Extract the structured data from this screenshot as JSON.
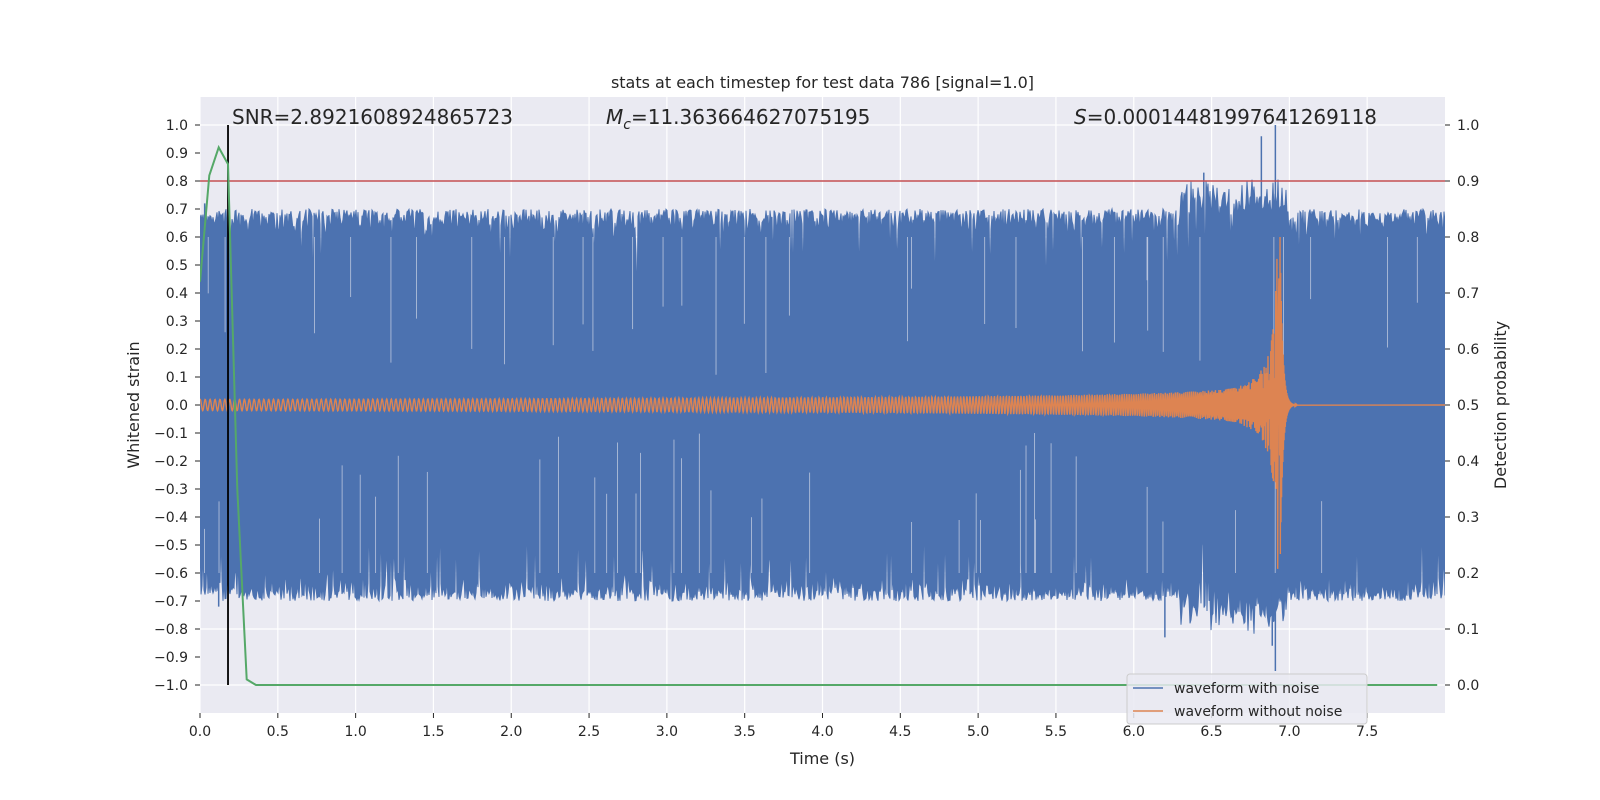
{
  "chart_data": {
    "type": "line",
    "title": "stats at each timestep for test data 786 [signal=1.0]",
    "xlabel": "Time (s)",
    "ylabel": "Whitened strain",
    "ylabel_right": "Detection probability",
    "xlim": [
      0.0,
      8.0
    ],
    "ylim": [
      -1.1,
      1.1
    ],
    "ylim_right": [
      -0.05,
      1.05
    ],
    "x_ticks": [
      0.0,
      0.5,
      1.0,
      1.5,
      2.0,
      2.5,
      3.0,
      3.5,
      4.0,
      4.5,
      5.0,
      5.5,
      6.0,
      6.5,
      7.0,
      7.5
    ],
    "x_tick_labels": [
      "0.0",
      "0.5",
      "1.0",
      "1.5",
      "2.0",
      "2.5",
      "3.0",
      "3.5",
      "4.0",
      "4.5",
      "5.0",
      "5.5",
      "6.0",
      "6.5",
      "7.0",
      "7.5"
    ],
    "y_ticks": [
      1.0,
      0.9,
      0.8,
      0.7,
      0.6,
      0.5,
      0.4,
      0.3,
      0.2,
      0.1,
      0.0,
      -0.1,
      -0.2,
      -0.3,
      -0.4,
      -0.5,
      -0.6,
      -0.7,
      -0.8,
      -0.9,
      -1.0
    ],
    "y_tick_labels": [
      "1.0",
      "0.9",
      "0.8",
      "0.7",
      "0.6",
      "0.5",
      "0.4",
      "0.3",
      "0.2",
      "0.1",
      "0.0",
      "−0.1",
      "−0.2",
      "−0.3",
      "−0.4",
      "−0.5",
      "−0.6",
      "−0.7",
      "−0.8",
      "−0.9",
      "−1.0"
    ],
    "y_ticks_right": [
      1.0,
      0.9,
      0.8,
      0.7,
      0.6,
      0.5,
      0.4,
      0.3,
      0.2,
      0.1,
      0.0
    ],
    "y_tick_labels_right": [
      "1.0",
      "0.9",
      "0.8",
      "0.7",
      "0.6",
      "0.5",
      "0.4",
      "0.3",
      "0.2",
      "0.1",
      "0.0"
    ],
    "annotations": {
      "snr": "SNR=2.8921608924865723",
      "mc_symbol": "M",
      "mc_subscript": "c",
      "mc_value": "=11.363664627075195",
      "s_symbol": "S",
      "s_value": "=0.00014481997641269118"
    },
    "threshold_line": {
      "axis": "right",
      "y": 0.9,
      "color": "#c44e52"
    },
    "detection_time_line": {
      "x": 0.18,
      "y_from": -1.0,
      "y_to": 1.0,
      "color": "#000000"
    },
    "merger_time": 6.94,
    "series": [
      {
        "name": "waveform with noise",
        "color": "#4c72b0",
        "axis": "left",
        "typical_envelope": [
          -0.7,
          0.7
        ],
        "extreme_excursions": [
          {
            "x": 0.03,
            "y": 0.72
          },
          {
            "x": 0.12,
            "y": -0.72
          },
          {
            "x": 1.76,
            "y": -0.3
          },
          {
            "x": 3.7,
            "y": -0.3
          },
          {
            "x": 6.2,
            "y": -0.83
          },
          {
            "x": 6.45,
            "y": 0.83
          },
          {
            "x": 6.82,
            "y": 0.96
          },
          {
            "x": 6.91,
            "y": 1.0
          },
          {
            "x": 6.91,
            "y": -0.95
          },
          {
            "x": 6.89,
            "y": -0.86
          }
        ]
      },
      {
        "name": "waveform without noise",
        "color": "#dd8452",
        "axis": "left",
        "amplitude_start": 0.02,
        "amplitude_peak": 0.6,
        "peak_time": 6.94
      },
      {
        "name": "detection probability",
        "color": "#55a868",
        "axis": "right",
        "x": [
          0.0,
          0.06,
          0.12,
          0.18,
          0.24,
          0.3,
          0.36,
          0.42,
          1.0,
          2.0,
          3.0,
          4.0,
          5.0,
          6.0,
          7.0,
          7.95
        ],
        "y": [
          0.72,
          0.91,
          0.96,
          0.93,
          0.35,
          0.01,
          0.0,
          0.0,
          0.0,
          0.0,
          0.0,
          0.0,
          0.0,
          0.0,
          0.0,
          0.0
        ]
      }
    ],
    "legend": {
      "position": "lower-right",
      "entries": [
        {
          "label": "waveform with noise",
          "color": "#4c72b0"
        },
        {
          "label": "waveform without noise",
          "color": "#dd8452"
        }
      ]
    }
  }
}
